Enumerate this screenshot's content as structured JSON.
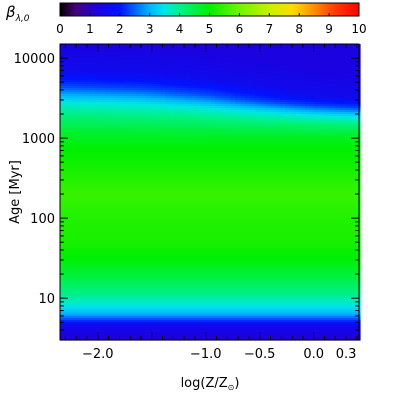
{
  "chart_data": {
    "type": "heatmap",
    "title": "",
    "colorbar": {
      "label_symbol": "β",
      "label_subscript": "λ,0",
      "min": 0,
      "max": 10,
      "ticks": [
        "0",
        "1",
        "2",
        "3",
        "4",
        "5",
        "6",
        "7",
        "8",
        "9",
        "10"
      ],
      "colormap": "rainbow (black-purple-blue-cyan-green-yellow-red)",
      "placement": "top"
    },
    "x_axis": {
      "label": "log(Z/Z",
      "label_sub": "⊙",
      "label_close": ")",
      "min": -2.35,
      "max": 0.42,
      "ticks": [
        {
          "value": -2.0,
          "label": "−2.0"
        },
        {
          "value": -1.0,
          "label": "−1.0"
        },
        {
          "value": -0.5,
          "label": "−0.5"
        },
        {
          "value": 0.0,
          "label": "0.0"
        },
        {
          "value": 0.3,
          "label": "0.3"
        }
      ]
    },
    "y_axis": {
      "label": "Age [Myr]",
      "scale": "log",
      "min": 3,
      "max": 15000,
      "ticks": [
        {
          "value": 10,
          "label": "10"
        },
        {
          "value": 100,
          "label": "100"
        },
        {
          "value": 1000,
          "label": "1000"
        },
        {
          "value": 10000,
          "label": "10000"
        }
      ]
    },
    "grid": false,
    "age_profile": [
      {
        "log_age": 0.48,
        "beta": 1.1
      },
      {
        "log_age": 0.65,
        "beta": 1.6
      },
      {
        "log_age": 0.72,
        "beta": 2.2
      },
      {
        "log_age": 0.8,
        "beta": 3.0
      },
      {
        "log_age": 0.92,
        "beta": 3.6
      },
      {
        "log_age": 1.05,
        "beta": 4.0
      },
      {
        "log_age": 1.2,
        "beta": 4.4
      },
      {
        "log_age": 1.45,
        "beta": 4.9
      },
      {
        "log_age": 1.7,
        "beta": 5.2
      },
      {
        "log_age": 2.0,
        "beta": 5.3
      },
      {
        "log_age": 2.3,
        "beta": 5.5
      },
      {
        "log_age": 2.6,
        "beta": 5.2
      },
      {
        "log_age": 2.85,
        "beta": 5.0
      },
      {
        "log_age": 3.05,
        "beta": 4.7
      },
      {
        "log_age": 3.25,
        "beta": 4.2
      },
      {
        "log_age": 3.45,
        "beta": 3.5
      },
      {
        "log_age": 3.65,
        "beta": 2.3
      },
      {
        "log_age": 3.85,
        "beta": 1.6
      },
      {
        "log_age": 4.18,
        "beta": 1.3
      }
    ],
    "metallicity_shift": [
      {
        "logZ": -2.35,
        "shift": 0.0
      },
      {
        "logZ": -1.6,
        "shift": 0.03
      },
      {
        "logZ": -1.0,
        "shift": 0.1
      },
      {
        "logZ": -0.5,
        "shift": 0.2
      },
      {
        "logZ": 0.0,
        "shift": 0.3
      },
      {
        "logZ": 0.42,
        "shift": 0.36
      }
    ]
  }
}
